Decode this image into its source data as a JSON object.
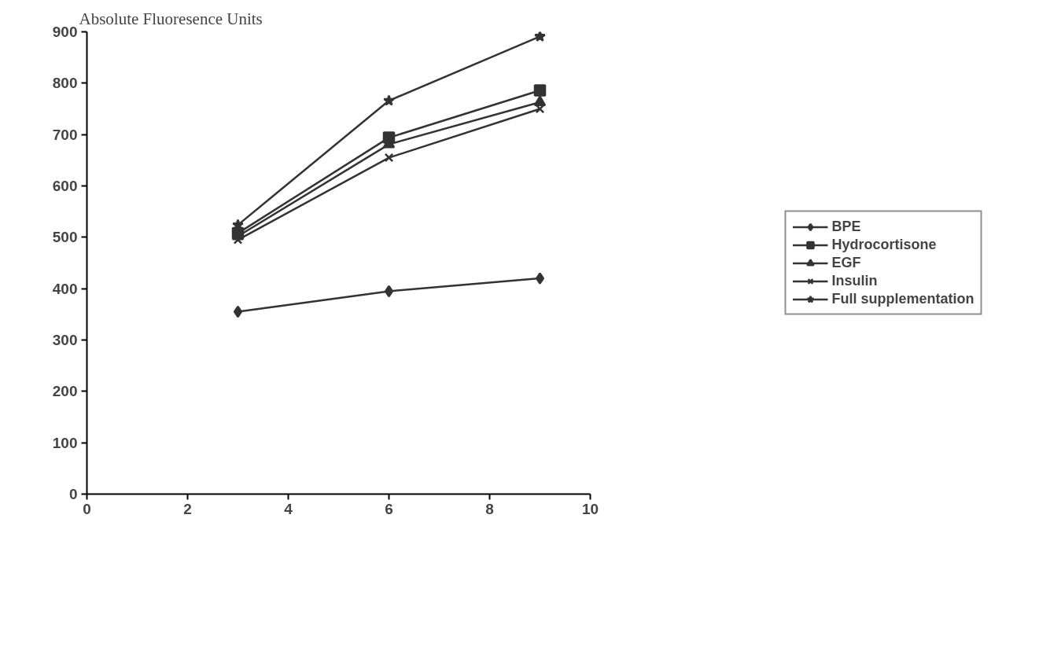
{
  "chart_data": {
    "type": "line",
    "ylabel": "Absolute Fluoresence Units",
    "x": [
      3,
      6,
      9
    ],
    "series": [
      {
        "name": "BPE",
        "color": "#333333",
        "marker": "diamond",
        "values": [
          355,
          395,
          420
        ]
      },
      {
        "name": "Hydrocortisone",
        "color": "#333333",
        "marker": "square",
        "values": [
          508,
          694,
          786
        ]
      },
      {
        "name": "EGF",
        "color": "#333333",
        "marker": "triangle",
        "values": [
          502,
          681,
          763
        ]
      },
      {
        "name": "Insulin",
        "color": "#333333",
        "marker": "cross",
        "values": [
          495,
          655,
          750
        ]
      },
      {
        "name": "Full supplementation",
        "color": "#333333",
        "marker": "star",
        "values": [
          524,
          766,
          891
        ]
      }
    ],
    "xlim": [
      0,
      10
    ],
    "xticks": [
      0,
      2,
      4,
      6,
      8,
      10
    ],
    "ylim": [
      0,
      900
    ],
    "yticks": [
      0,
      100,
      200,
      300,
      400,
      500,
      600,
      700,
      800,
      900
    ],
    "grid": false,
    "legend": "right",
    "line_style": "solid"
  }
}
